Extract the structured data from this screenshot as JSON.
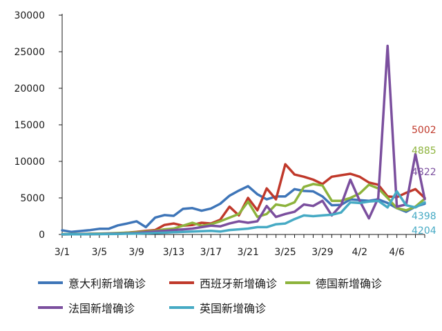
{
  "chart_data": {
    "type": "line",
    "categories": [
      "3/1",
      "3/2",
      "3/3",
      "3/4",
      "3/5",
      "3/6",
      "3/7",
      "3/8",
      "3/9",
      "3/10",
      "3/11",
      "3/12",
      "3/13",
      "3/14",
      "3/15",
      "3/16",
      "3/17",
      "3/18",
      "3/19",
      "3/20",
      "3/21",
      "3/22",
      "3/23",
      "3/24",
      "3/25",
      "3/26",
      "3/27",
      "3/28",
      "3/29",
      "3/30",
      "3/31",
      "4/1",
      "4/2",
      "4/3",
      "4/4",
      "4/5",
      "4/6",
      "4/7",
      "4/8",
      "4/9"
    ],
    "x_tick_labels": [
      "3/1",
      "3/5",
      "3/9",
      "3/13",
      "3/17",
      "3/21",
      "3/25",
      "3/29",
      "4/2",
      "4/6"
    ],
    "y_ticks": [
      "0",
      "5000",
      "10000",
      "15000",
      "20000",
      "25000",
      "30000"
    ],
    "ylim": [
      0,
      30000
    ],
    "legend_position": "bottom",
    "series": [
      {
        "name": "意大利新增确诊",
        "color": "#3e75b8",
        "values": [
          570,
          350,
          470,
          590,
          770,
          770,
          1250,
          1500,
          1800,
          1000,
          2300,
          2650,
          2550,
          3500,
          3600,
          3250,
          3550,
          4200,
          5300,
          6000,
          6600,
          5500,
          4800,
          5200,
          5200,
          6200,
          5950,
          5900,
          5200,
          4000,
          4050,
          4800,
          4700,
          4600,
          4800,
          4300,
          3600,
          3100,
          3800,
          4204
        ],
        "end_label": null
      },
      {
        "name": "西班牙新增确诊",
        "color": "#c0392b",
        "values": [
          0,
          30,
          40,
          50,
          60,
          100,
          150,
          250,
          350,
          500,
          600,
          1300,
          1500,
          1200,
          1300,
          1600,
          1500,
          2000,
          3800,
          2600,
          5000,
          3300,
          6300,
          4800,
          9600,
          8200,
          7900,
          7500,
          6900,
          7900,
          8100,
          8300,
          7900,
          7100,
          6800,
          5200,
          5100,
          5700,
          6200,
          5002
        ],
        "end_label": "5002"
      },
      {
        "name": "德国新增确诊",
        "color": "#8db33c",
        "values": [
          50,
          50,
          80,
          100,
          120,
          150,
          200,
          250,
          300,
          400,
          500,
          700,
          800,
          1200,
          1600,
          1200,
          1400,
          1800,
          2300,
          2800,
          4500,
          2400,
          2800,
          4100,
          3900,
          4400,
          6500,
          6900,
          6700,
          4600,
          4600,
          5000,
          5600,
          6800,
          6300,
          5000,
          3600,
          3300,
          3800,
          4885
        ],
        "end_label": "4885"
      },
      {
        "name": "法国新增确诊",
        "color": "#7b4f9e",
        "values": [
          20,
          30,
          50,
          60,
          80,
          100,
          120,
          150,
          200,
          300,
          400,
          500,
          600,
          700,
          800,
          1000,
          1200,
          1100,
          1500,
          1800,
          1600,
          1800,
          3900,
          2400,
          2800,
          3100,
          4100,
          3900,
          4600,
          2600,
          4000,
          7500,
          4600,
          2200,
          5000,
          25800,
          3800,
          4100,
          11000,
          4822
        ],
        "end_label": "4822"
      },
      {
        "name": "英国新增确诊",
        "color": "#46aac4",
        "values": [
          10,
          20,
          30,
          40,
          50,
          60,
          80,
          100,
          120,
          150,
          200,
          250,
          300,
          350,
          400,
          450,
          500,
          400,
          600,
          700,
          800,
          1000,
          1000,
          1400,
          1500,
          2100,
          2600,
          2500,
          2600,
          2700,
          3000,
          4400,
          4300,
          4500,
          4600,
          3700,
          5900,
          4000,
          3700,
          4398
        ],
        "end_label": "4398"
      }
    ],
    "extra_labels": [
      "4204"
    ]
  }
}
